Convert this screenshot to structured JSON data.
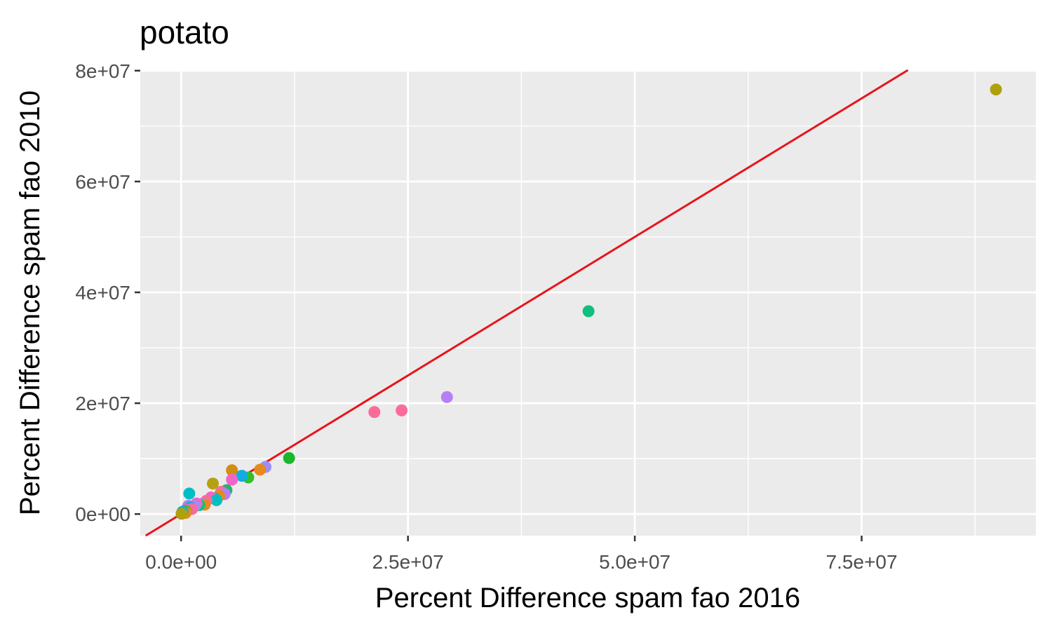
{
  "chart_data": {
    "type": "scatter",
    "title": "potato",
    "xlabel": "Percent Difference spam fao 2016",
    "ylabel": "Percent Difference spam fao 2010",
    "xlim": [
      -4500000,
      94200000
    ],
    "ylim": [
      -3900000,
      80100000
    ],
    "x_ticks": [
      0,
      25000000,
      50000000,
      75000000
    ],
    "x_tick_labels": [
      "0.0e+00",
      "2.5e+07",
      "5.0e+07",
      "7.5e+07"
    ],
    "x_minor_ticks": [
      12500000,
      37500000,
      62500000,
      87500000
    ],
    "y_ticks": [
      0,
      20000000,
      40000000,
      60000000,
      80000000
    ],
    "y_tick_labels": [
      "0e+00",
      "2e+07",
      "4e+07",
      "6e+07",
      "8e+07"
    ],
    "y_minor_ticks": [
      10000000,
      30000000,
      50000000,
      70000000
    ],
    "grid": true,
    "legend": "none",
    "reference_line": {
      "slope": 1,
      "intercept": 0,
      "color": "#e8141c"
    },
    "panel_background": "#ebebeb",
    "points": [
      {
        "x": 89800000,
        "y": 76600000,
        "color": "#b0a00e"
      },
      {
        "x": 44900000,
        "y": 36600000,
        "color": "#10bf7d"
      },
      {
        "x": 29300000,
        "y": 21100000,
        "color": "#b580f6"
      },
      {
        "x": 24300000,
        "y": 18700000,
        "color": "#fb6b99"
      },
      {
        "x": 21300000,
        "y": 18400000,
        "color": "#fb6b99"
      },
      {
        "x": 11900000,
        "y": 10100000,
        "color": "#19b72a"
      },
      {
        "x": 9300000,
        "y": 8500000,
        "color": "#9b8ff7"
      },
      {
        "x": 8700000,
        "y": 8000000,
        "color": "#e58b1b"
      },
      {
        "x": 5600000,
        "y": 7900000,
        "color": "#d08e12"
      },
      {
        "x": 7400000,
        "y": 6600000,
        "color": "#33bf2c"
      },
      {
        "x": 6700000,
        "y": 6900000,
        "color": "#14abe0"
      },
      {
        "x": 5600000,
        "y": 6200000,
        "color": "#f066c8"
      },
      {
        "x": 3500000,
        "y": 5500000,
        "color": "#b5a111"
      },
      {
        "x": 5000000,
        "y": 4300000,
        "color": "#22b573"
      },
      {
        "x": 4400000,
        "y": 4000000,
        "color": "#fb6b99"
      },
      {
        "x": 4800000,
        "y": 3600000,
        "color": "#b580f6"
      },
      {
        "x": 4200000,
        "y": 3300000,
        "color": "#e58b1b"
      },
      {
        "x": 3700000,
        "y": 2800000,
        "color": "#14abe0"
      },
      {
        "x": 3300000,
        "y": 3000000,
        "color": "#f066c8"
      },
      {
        "x": 3900000,
        "y": 2500000,
        "color": "#00bfc4"
      },
      {
        "x": 2800000,
        "y": 2400000,
        "color": "#fb6b99"
      },
      {
        "x": 2400000,
        "y": 1900000,
        "color": "#b580f6"
      },
      {
        "x": 2600000,
        "y": 1700000,
        "color": "#e58b1b"
      },
      {
        "x": 2000000,
        "y": 1600000,
        "color": "#10bf7d"
      },
      {
        "x": 1700000,
        "y": 1900000,
        "color": "#f066c8"
      },
      {
        "x": 1500000,
        "y": 1400000,
        "color": "#9b8ff7"
      },
      {
        "x": 900000,
        "y": 3700000,
        "color": "#00bfc4"
      },
      {
        "x": 800000,
        "y": 1500000,
        "color": "#b580f6"
      },
      {
        "x": 1000000,
        "y": 1200000,
        "color": "#14abe0"
      },
      {
        "x": 1200000,
        "y": 900000,
        "color": "#fb6b99"
      },
      {
        "x": 700000,
        "y": 800000,
        "color": "#f066c8"
      },
      {
        "x": 600000,
        "y": 500000,
        "color": "#d08e12"
      },
      {
        "x": 400000,
        "y": 600000,
        "color": "#33bf2c"
      },
      {
        "x": 300000,
        "y": 300000,
        "color": "#f066c8"
      },
      {
        "x": 200000,
        "y": 200000,
        "color": "#b580f6"
      },
      {
        "x": 100000,
        "y": 100000,
        "color": "#b5a111"
      },
      {
        "x": 500000,
        "y": 200000,
        "color": "#e58b1b"
      },
      {
        "x": 150000,
        "y": 400000,
        "color": "#14abe0"
      },
      {
        "x": 50000,
        "y": 50000,
        "color": "#b0a00e"
      }
    ]
  }
}
